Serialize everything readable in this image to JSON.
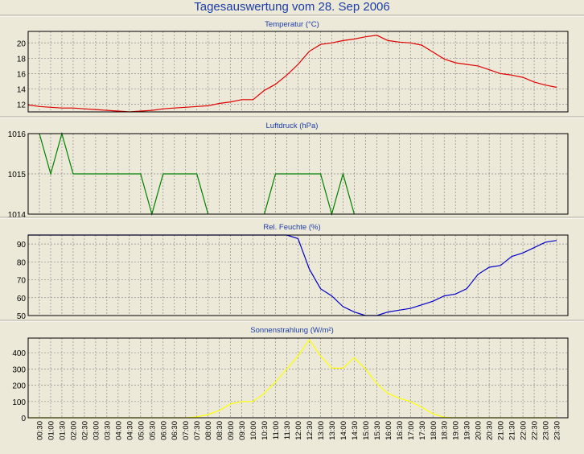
{
  "page_title": "Tagesauswertung vom 28. Sep 2006",
  "x_tick_labels": [
    "00:30",
    "01:00",
    "01:30",
    "02:00",
    "02:30",
    "03:00",
    "03:30",
    "04:00",
    "04:30",
    "05:00",
    "05:30",
    "06:00",
    "06:30",
    "07:00",
    "07:30",
    "08:00",
    "08:30",
    "09:00",
    "09:30",
    "10:00",
    "10:30",
    "11:00",
    "11:30",
    "12:00",
    "12:30",
    "13:00",
    "13:30",
    "14:00",
    "14:30",
    "15:00",
    "15:30",
    "16:00",
    "16:30",
    "17:00",
    "17:30",
    "18:00",
    "18:30",
    "19:00",
    "19:30",
    "20:00",
    "20:30",
    "21:00",
    "21:30",
    "22:00",
    "22:30",
    "23:00",
    "23:30"
  ],
  "chart_data": [
    {
      "type": "line",
      "title": "Temperatur (°C)",
      "color": "#e00000",
      "ylim": [
        11,
        21.5
      ],
      "yticks": [
        12,
        14,
        16,
        18,
        20
      ],
      "grid": true,
      "x": [
        "00:00",
        "00:30",
        "01:00",
        "01:30",
        "02:00",
        "02:30",
        "03:00",
        "03:30",
        "04:00",
        "04:30",
        "05:00",
        "05:30",
        "06:00",
        "06:30",
        "07:00",
        "07:30",
        "08:00",
        "08:30",
        "09:00",
        "09:30",
        "10:00",
        "10:30",
        "11:00",
        "11:30",
        "12:00",
        "12:30",
        "13:00",
        "13:30",
        "14:00",
        "14:30",
        "15:00",
        "15:30",
        "16:00",
        "16:30",
        "17:00",
        "17:30",
        "18:00",
        "18:30",
        "19:00",
        "19:30",
        "20:00",
        "20:30",
        "21:00",
        "21:30",
        "22:00",
        "22:30",
        "23:00",
        "23:30"
      ],
      "values": [
        11.9,
        11.7,
        11.6,
        11.5,
        11.5,
        11.4,
        11.3,
        11.2,
        11.1,
        11.0,
        11.1,
        11.2,
        11.4,
        11.5,
        11.6,
        11.7,
        11.8,
        12.1,
        12.3,
        12.6,
        12.6,
        13.8,
        14.6,
        15.8,
        17.2,
        18.9,
        19.8,
        20.0,
        20.3,
        20.5,
        20.8,
        21.0,
        20.3,
        20.1,
        20.0,
        19.7,
        18.8,
        17.9,
        17.4,
        17.2,
        17.0,
        16.5,
        16.0,
        15.8,
        15.5,
        14.9,
        14.5,
        14.2
      ]
    },
    {
      "type": "line",
      "title": "Luftdruck (hPa)",
      "color": "#008000",
      "ylim": [
        1014,
        1016
      ],
      "yticks": [
        1014,
        1015,
        1016
      ],
      "grid": true,
      "x": [
        "00:30",
        "01:00",
        "01:30",
        "02:00",
        "02:30",
        "03:00",
        "03:30",
        "04:00",
        "04:30",
        "05:00",
        "05:30",
        "06:00",
        "06:30",
        "07:00",
        "07:30",
        "08:00",
        "08:30",
        "09:00",
        "09:30",
        "10:00",
        "10:30",
        "11:00",
        "11:30",
        "12:00",
        "12:30",
        "13:00",
        "13:30",
        "14:00",
        "14:30"
      ],
      "values": [
        1016,
        1015,
        1016,
        1015,
        1015,
        1015,
        1015,
        1015,
        1015,
        1015,
        1014,
        1015,
        1015,
        1015,
        1015,
        1014,
        null,
        null,
        null,
        null,
        1014,
        1015,
        1015,
        1015,
        1015,
        1015,
        1014,
        1015,
        1014
      ]
    },
    {
      "type": "line",
      "title": "Rel. Feuchte (%)",
      "color": "#0000c8",
      "ylim": [
        50,
        95
      ],
      "yticks": [
        50,
        60,
        70,
        80,
        90
      ],
      "grid": true,
      "x": [
        "00:00",
        "00:30",
        "01:00",
        "01:30",
        "02:00",
        "02:30",
        "03:00",
        "03:30",
        "04:00",
        "04:30",
        "05:00",
        "05:30",
        "06:00",
        "06:30",
        "07:00",
        "07:30",
        "08:00",
        "08:30",
        "09:00",
        "09:30",
        "10:00",
        "10:30",
        "11:00",
        "11:30",
        "12:00",
        "12:30",
        "13:00",
        "13:30",
        "14:00",
        "14:30",
        "15:00",
        "15:30",
        "16:00",
        "16:30",
        "17:00",
        "17:30",
        "18:00",
        "18:30",
        "19:00",
        "19:30",
        "20:00",
        "20:30",
        "21:00",
        "21:30",
        "22:00",
        "22:30",
        "23:00",
        "23:30"
      ],
      "values": [
        95,
        95,
        95,
        95,
        95,
        95,
        95,
        95,
        95,
        95,
        95,
        95,
        95,
        95,
        95,
        96,
        96,
        96,
        96,
        96,
        96,
        96,
        96,
        96,
        93,
        76,
        65,
        61,
        55,
        52,
        50,
        49,
        52,
        53,
        54,
        56,
        58,
        61,
        62,
        65,
        73,
        77,
        78,
        83,
        85,
        88,
        91,
        92
      ]
    },
    {
      "type": "area",
      "title": "Sonnenstrahlung (W/m²)",
      "color": "#ffff00",
      "ylim": [
        0,
        490
      ],
      "yticks": [
        0,
        100,
        200,
        300,
        400
      ],
      "grid": true,
      "x": [
        "00:00",
        "00:30",
        "01:00",
        "01:30",
        "02:00",
        "02:30",
        "03:00",
        "03:30",
        "04:00",
        "04:30",
        "05:00",
        "05:30",
        "06:00",
        "06:30",
        "07:00",
        "07:30",
        "08:00",
        "08:30",
        "09:00",
        "09:30",
        "10:00",
        "10:30",
        "11:00",
        "11:30",
        "12:00",
        "12:30",
        "13:00",
        "13:30",
        "14:00",
        "14:30",
        "15:00",
        "15:30",
        "16:00",
        "16:30",
        "17:00",
        "17:30",
        "18:00",
        "18:30",
        "19:00",
        "19:30",
        "20:00",
        "20:30",
        "21:00",
        "21:30",
        "22:00",
        "22:30",
        "23:00",
        "23:30"
      ],
      "values": [
        0,
        0,
        0,
        0,
        0,
        0,
        0,
        0,
        0,
        0,
        0,
        0,
        0,
        0,
        0,
        5,
        20,
        45,
        85,
        100,
        100,
        150,
        220,
        300,
        380,
        480,
        380,
        305,
        305,
        370,
        300,
        210,
        150,
        120,
        100,
        65,
        25,
        3,
        0,
        0,
        0,
        0,
        0,
        0,
        0,
        0,
        0,
        0
      ]
    }
  ]
}
